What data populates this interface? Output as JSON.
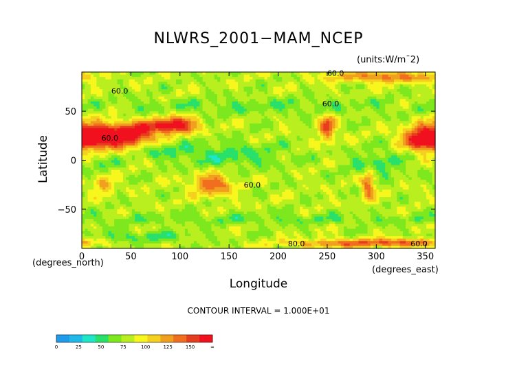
{
  "chart_data": {
    "type": "heatmap",
    "title": "NLWRS_2001−MAM_NCEP",
    "units": "(units:W/m¯2)",
    "xlabel": "Longitude",
    "ylabel": "Latitude",
    "x_unit_label": "(degrees_east)",
    "y_unit_label": "(degrees_north)",
    "xlim": [
      0,
      360
    ],
    "ylim": [
      -90,
      90
    ],
    "x_ticks": [
      0,
      50,
      100,
      150,
      200,
      250,
      300,
      350
    ],
    "y_ticks": [
      50,
      0,
      -50
    ],
    "contour_interval_text": "CONTOUR INTERVAL = 1.000E+01",
    "contour_labels": [
      "60.0",
      "60.0",
      "60.0",
      "60.0",
      "60.0",
      "60.0",
      "80.0"
    ],
    "colorbar": {
      "ticks": [
        "0",
        "25",
        "50",
        "75",
        "100",
        "125",
        "150",
        "∞"
      ],
      "colors": [
        "#1f9be9",
        "#1fb9e9",
        "#1ee6c9",
        "#28e06a",
        "#7de81e",
        "#b9ef1f",
        "#f7f71e",
        "#f4d11e",
        "#f0a01e",
        "#f06e1e",
        "#e53e1e",
        "#f0101e"
      ]
    },
    "levels": [
      0,
      12.5,
      25,
      37.5,
      50,
      62.5,
      75,
      87.5,
      100,
      112.5,
      125,
      137.5,
      150
    ]
  }
}
